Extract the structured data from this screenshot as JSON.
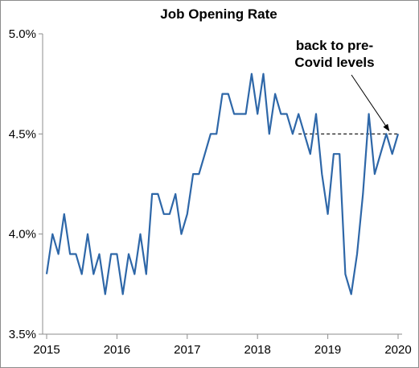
{
  "chart_data": {
    "type": "line",
    "title": "Job Opening Rate",
    "xlabel": "",
    "ylabel": "",
    "ylim": [
      3.5,
      5.0
    ],
    "y_ticks": [
      "3.5%",
      "4.0%",
      "4.5%",
      "5.0%"
    ],
    "y_tick_values": [
      3.5,
      4.0,
      4.5,
      5.0
    ],
    "x_ticks": [
      "2015",
      "2016",
      "2017",
      "2018",
      "2019",
      "2020"
    ],
    "x_tick_values": [
      2015,
      2016,
      2017,
      2018,
      2019,
      2020
    ],
    "grid": false,
    "legend": "none",
    "line_color": "#2e67a8",
    "series": [
      {
        "x": [
          2015.0,
          2015.083,
          2015.167,
          2015.25,
          2015.333,
          2015.417,
          2015.5,
          2015.583,
          2015.667,
          2015.75,
          2015.833,
          2015.917,
          2016.0,
          2016.083,
          2016.167,
          2016.25,
          2016.333,
          2016.417,
          2016.5,
          2016.583,
          2016.667,
          2016.75,
          2016.833,
          2016.917,
          2017.0,
          2017.083,
          2017.167,
          2017.25,
          2017.333,
          2017.417,
          2017.5,
          2017.583,
          2017.667,
          2017.75,
          2017.833,
          2017.917,
          2018.0,
          2018.083,
          2018.167,
          2018.25,
          2018.333,
          2018.417,
          2018.5,
          2018.583,
          2018.667,
          2018.75,
          2018.833,
          2018.917,
          2019.0,
          2019.083,
          2019.167,
          2019.25,
          2019.333,
          2019.417,
          2019.5,
          2019.583,
          2019.667,
          2019.75,
          2019.833,
          2019.917,
          2020.0
        ],
        "values": [
          3.8,
          4.0,
          3.9,
          4.1,
          3.9,
          3.9,
          3.8,
          4.0,
          3.8,
          3.9,
          3.7,
          3.9,
          3.9,
          3.7,
          3.9,
          3.8,
          4.0,
          3.8,
          4.2,
          4.2,
          4.1,
          4.1,
          4.2,
          4.0,
          4.1,
          4.3,
          4.3,
          4.4,
          4.5,
          4.5,
          4.7,
          4.7,
          4.6,
          4.6,
          4.6,
          4.8,
          4.6,
          4.8,
          4.5,
          4.7,
          4.6,
          4.6,
          4.5,
          4.6,
          4.5,
          4.4,
          4.6,
          4.3,
          4.1,
          4.4,
          4.4,
          3.8,
          3.7,
          3.9,
          4.2,
          4.6,
          4.3,
          4.4,
          4.5,
          4.4,
          4.5
        ]
      }
    ],
    "reference_line": {
      "y": 4.5,
      "x_start": 2018.583,
      "x_end": 2020.0,
      "style": "dashed"
    },
    "annotation": {
      "lines": [
        "back to pre-",
        "Covid levels"
      ],
      "arrow_target": [
        2019.917,
        4.5
      ]
    }
  }
}
